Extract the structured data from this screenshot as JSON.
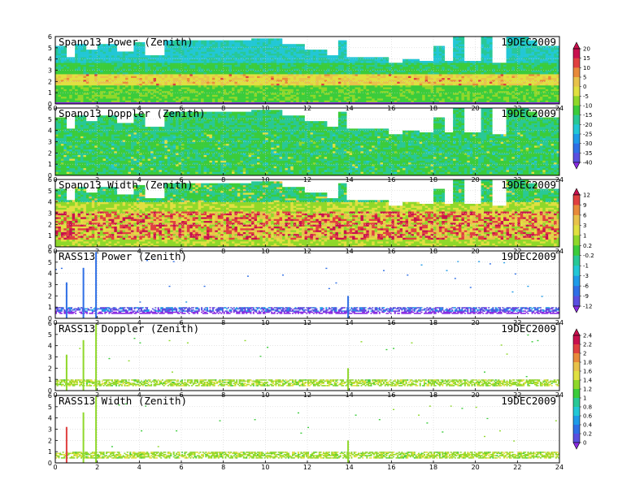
{
  "colors": {
    "palette": [
      "#8a2be2",
      "#5a4fe0",
      "#2f6fe6",
      "#1e9be8",
      "#22c7d6",
      "#28c896",
      "#3bcc3b",
      "#8fd82a",
      "#e0e040",
      "#e8c24a",
      "#e88a3a",
      "#e04040",
      "#c8104e"
    ],
    "missing": "#ffffff",
    "frame": "#000000",
    "grid": "#c8c8c8"
  },
  "chart_data": [
    {
      "type": "heatmap",
      "title": "Spano13 Power (Zenith)",
      "date_label": "19DEC2009",
      "x_ticks": [
        "0",
        "2",
        "4",
        "6",
        "8",
        "10",
        "12",
        "14",
        "16",
        "18",
        "20",
        "22",
        "24"
      ],
      "y_ticks": [
        "0",
        "1",
        "2",
        "3",
        "4",
        "5",
        "6"
      ],
      "xlim": [
        0,
        24
      ],
      "ylim": [
        0,
        6
      ],
      "grid": true,
      "field": "spano-power",
      "colorbar": "power"
    },
    {
      "type": "heatmap",
      "title": "Spano13 Doppler (Zenith)",
      "date_label": "19DEC2009",
      "x_ticks": [
        "0",
        "2",
        "4",
        "6",
        "8",
        "10",
        "12",
        "14",
        "16",
        "18",
        "20",
        "22",
        "24"
      ],
      "y_ticks": [
        "0",
        "1",
        "2",
        "3",
        "4",
        "5",
        "6"
      ],
      "xlim": [
        0,
        24
      ],
      "ylim": [
        0,
        6
      ],
      "grid": true,
      "field": "spano-doppler",
      "colorbar": "power"
    },
    {
      "type": "heatmap",
      "title": "Spano13 Width (Zenith)",
      "date_label": "19DEC2009",
      "x_ticks": [
        "0",
        "2",
        "4",
        "6",
        "8",
        "10",
        "12",
        "14",
        "16",
        "18",
        "20",
        "22",
        "24"
      ],
      "y_ticks": [
        "0",
        "1",
        "2",
        "3",
        "4",
        "5",
        "6"
      ],
      "xlim": [
        0,
        24
      ],
      "ylim": [
        0,
        6
      ],
      "grid": true,
      "field": "spano-width",
      "colorbar": "width"
    },
    {
      "type": "heatmap",
      "title": "RASS13 Power (Zenith)",
      "date_label": "19DEC2009",
      "x_ticks": [
        "0",
        "2",
        "4",
        "6",
        "8",
        "10",
        "12",
        "14",
        "16",
        "18",
        "20",
        "22",
        "24"
      ],
      "y_ticks": [
        "0",
        "1",
        "2",
        "3",
        "4",
        "5",
        "6"
      ],
      "xlim": [
        0,
        24
      ],
      "ylim": [
        0,
        6
      ],
      "grid": true,
      "field": "rass-power",
      "colorbar": "width"
    },
    {
      "type": "heatmap",
      "title": "RASS13 Doppler (Zenith)",
      "date_label": "19DEC2009",
      "x_ticks": [
        "0",
        "2",
        "4",
        "6",
        "8",
        "10",
        "12",
        "14",
        "16",
        "18",
        "20",
        "22",
        "24"
      ],
      "y_ticks": [
        "0",
        "1",
        "2",
        "3",
        "4",
        "5",
        "6"
      ],
      "xlim": [
        0,
        24
      ],
      "ylim": [
        0,
        6
      ],
      "grid": true,
      "field": "rass-doppler",
      "colorbar": "rass"
    },
    {
      "type": "heatmap",
      "title": "RASS13 Width (Zenith)",
      "date_label": "19DEC2009",
      "x_ticks": [
        "0",
        "2",
        "4",
        "6",
        "8",
        "10",
        "12",
        "14",
        "16",
        "18",
        "20",
        "22",
        "24"
      ],
      "y_ticks": [
        "0",
        "1",
        "2",
        "3",
        "4",
        "5",
        "6"
      ],
      "xlim": [
        0,
        24
      ],
      "ylim": [
        0,
        6
      ],
      "grid": true,
      "field": "rass-width",
      "colorbar": "rass"
    }
  ],
  "colorbars": {
    "power": {
      "labels": [
        "20",
        "15",
        "10",
        "5",
        "0",
        "-5",
        "-10",
        "-15",
        "-20",
        "-25",
        "-30",
        "-35",
        "-40"
      ]
    },
    "width": {
      "labels": [
        "12",
        "9",
        "6",
        "3",
        "1",
        "0.2",
        "-0.2",
        "-1",
        "-3",
        "-6",
        "-9",
        "-12"
      ]
    },
    "rass": {
      "labels": [
        "2.4",
        "2.2",
        "2",
        "1.8",
        "1.6",
        "1.4",
        "1.2",
        "1",
        "0.8",
        "0.6",
        "0.4",
        "0.2",
        "0"
      ]
    }
  }
}
